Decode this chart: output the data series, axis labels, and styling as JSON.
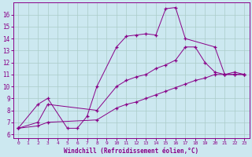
{
  "xlabel": "Windchill (Refroidissement éolien,°C)",
  "bg_color": "#cce8f0",
  "grid_color": "#aaccc8",
  "line_color": "#880088",
  "xlim": [
    -0.5,
    23.5
  ],
  "ylim": [
    5.7,
    17.0
  ],
  "xticks": [
    0,
    1,
    2,
    3,
    4,
    5,
    6,
    7,
    8,
    9,
    10,
    11,
    12,
    13,
    14,
    15,
    16,
    17,
    18,
    19,
    20,
    21,
    22,
    23
  ],
  "yticks": [
    6,
    7,
    8,
    9,
    10,
    11,
    12,
    13,
    14,
    15,
    16
  ],
  "curve1_x": [
    0,
    2,
    3,
    5,
    6,
    7,
    8,
    10,
    11,
    12,
    13,
    14,
    15,
    16,
    17,
    20,
    21,
    22,
    23
  ],
  "curve1_y": [
    6.5,
    8.5,
    9.0,
    6.5,
    6.5,
    7.5,
    10.0,
    13.3,
    14.2,
    14.3,
    14.4,
    14.3,
    16.5,
    16.6,
    14.0,
    13.3,
    11.0,
    11.0,
    11.0
  ],
  "curve2_x": [
    0,
    2,
    3,
    8,
    10,
    11,
    12,
    13,
    14,
    15,
    16,
    17,
    18,
    19,
    20,
    21,
    22,
    23
  ],
  "curve2_y": [
    6.5,
    7.0,
    8.5,
    8.0,
    10.0,
    10.5,
    10.8,
    11.0,
    11.5,
    11.8,
    12.2,
    13.3,
    13.3,
    12.0,
    11.2,
    11.0,
    11.2,
    11.0
  ],
  "curve3_x": [
    0,
    2,
    3,
    8,
    10,
    11,
    12,
    13,
    14,
    15,
    16,
    17,
    18,
    19,
    20,
    21,
    22,
    23
  ],
  "curve3_y": [
    6.5,
    6.7,
    7.0,
    7.2,
    8.2,
    8.5,
    8.7,
    9.0,
    9.3,
    9.6,
    9.9,
    10.2,
    10.5,
    10.7,
    11.0,
    11.0,
    11.0,
    11.0
  ]
}
